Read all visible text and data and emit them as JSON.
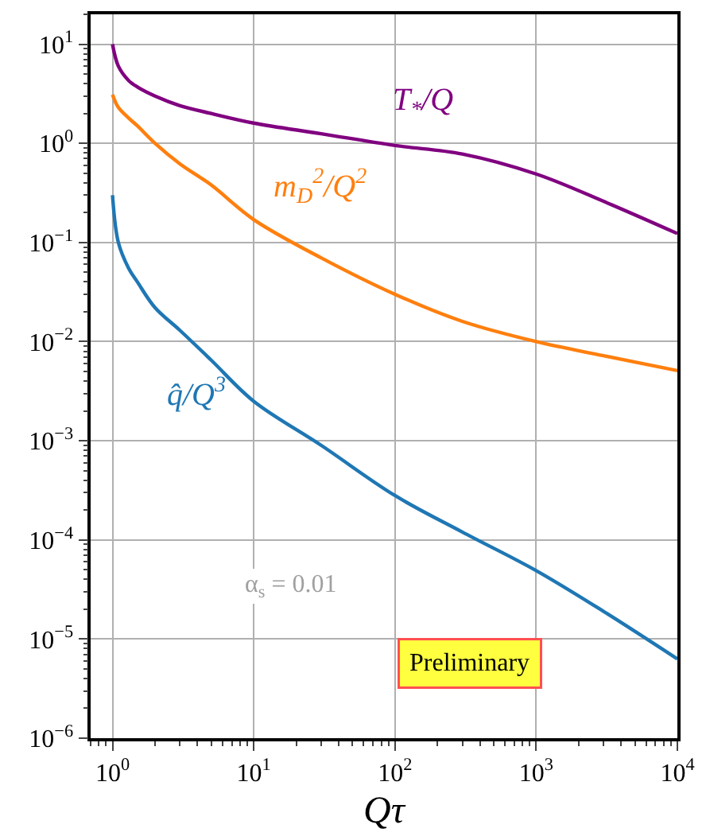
{
  "chart_data": {
    "type": "line",
    "xlabel": "Qτ",
    "log": "xy",
    "grid": true,
    "legend": false,
    "marker": "none",
    "line_style": "solid",
    "xlim": [
      0.7,
      10000
    ],
    "ylim": [
      1e-06,
      20
    ],
    "xticks": [
      {
        "value": 1,
        "label": "10$^{0}$"
      },
      {
        "value": 10,
        "label": "10$^{1}$"
      },
      {
        "value": 100,
        "label": "10$^{2}$"
      },
      {
        "value": 1000,
        "label": "10$^{3}$"
      },
      {
        "value": 10000,
        "label": "10$^{4}$"
      }
    ],
    "yticks": [
      {
        "value": 1e-06,
        "label": "10$^{−6}$"
      },
      {
        "value": 1e-05,
        "label": "10$^{−5}$"
      },
      {
        "value": 0.0001,
        "label": "10$^{−4}$"
      },
      {
        "value": 0.001,
        "label": "10$^{−3}$"
      },
      {
        "value": 0.01,
        "label": "10$^{−2}$"
      },
      {
        "value": 0.1,
        "label": "10$^{−1}$"
      },
      {
        "value": 1,
        "label": "10$^{0}$"
      },
      {
        "value": 10,
        "label": "10$^{1}$"
      }
    ],
    "x": [
      1,
      1.1,
      1.3,
      1.5,
      2,
      3,
      5,
      10,
      30,
      100,
      300,
      1000,
      3000,
      10000
    ],
    "series": [
      {
        "name": "T$_{*}$/Q",
        "color": "#800080",
        "values": [
          10,
          6,
          4.3,
          3.7,
          3,
          2.4,
          2.0,
          1.6,
          1.25,
          0.95,
          0.78,
          0.49,
          0.26,
          0.123
        ]
      },
      {
        "name": "m$_{D}$$^{2}$/Q$^{2}$",
        "color": "#ff7f0e",
        "values": [
          3.1,
          2.3,
          1.8,
          1.5,
          1.0,
          0.62,
          0.38,
          0.17,
          0.07,
          0.03,
          0.016,
          0.01,
          0.0072,
          0.0051
        ]
      },
      {
        "name": "q̂/Q$^{3}$",
        "color": "#1f77b4",
        "values": [
          0.3,
          0.1,
          0.055,
          0.04,
          0.022,
          0.013,
          0.0065,
          0.0025,
          0.0009,
          0.00028,
          0.00012,
          4.9e-05,
          1.9e-05,
          6.3e-06
        ]
      }
    ],
    "annotations": [
      "α$_{s}$ = 0.01",
      "Preliminary"
    ]
  }
}
